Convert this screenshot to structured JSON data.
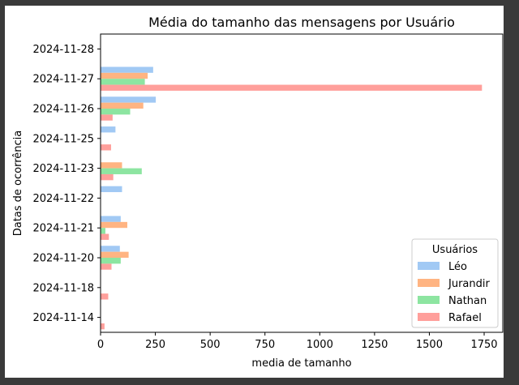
{
  "chart_data": {
    "type": "bar",
    "orientation": "horizontal",
    "title": "Média do tamanho das mensagens por Usuário",
    "xlabel": "media de tamanho",
    "ylabel": "Datas de ocorrência",
    "xlim": [
      0,
      1835
    ],
    "xticks": [
      0,
      250,
      500,
      750,
      1000,
      1250,
      1500,
      1750
    ],
    "categories": [
      "2024-11-28",
      "2024-11-27",
      "2024-11-26",
      "2024-11-25",
      "2024-11-23",
      "2024-11-22",
      "2024-11-21",
      "2024-11-20",
      "2024-11-18",
      "2024-11-14"
    ],
    "legend": {
      "title": "Usuários",
      "placement": "lower right"
    },
    "grid": false,
    "series": [
      {
        "name": "Léo",
        "color": "#a1c9f4",
        "values": [
          0,
          240,
          252,
          68,
          0,
          98,
          92,
          88,
          0,
          0
        ]
      },
      {
        "name": "Jurandir",
        "color": "#ffb482",
        "values": [
          0,
          215,
          195,
          0,
          98,
          0,
          122,
          128,
          0,
          0
        ]
      },
      {
        "name": "Nathan",
        "color": "#8de5a1",
        "values": [
          0,
          202,
          135,
          0,
          188,
          0,
          22,
          92,
          0,
          0
        ]
      },
      {
        "name": "Rafael",
        "color": "#ff9f9b",
        "values": [
          0,
          1740,
          55,
          48,
          58,
          0,
          38,
          50,
          35,
          18
        ]
      }
    ]
  }
}
